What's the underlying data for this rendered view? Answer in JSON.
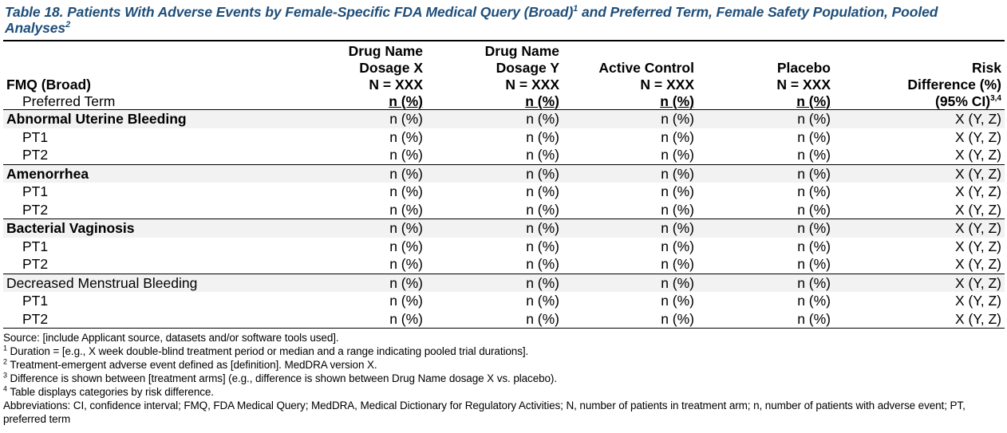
{
  "title": {
    "main": "Table 18. Patients With Adverse Events by Female-Specific FDA Medical Query (Broad)",
    "sup1": "1",
    "rest": " and Preferred Term, Female Safety Population, Pooled Analyses",
    "sup2": "2"
  },
  "header": {
    "col0_line1": "FMQ (Broad)",
    "col0_line2": "Preferred Term",
    "col1": [
      "Drug Name",
      "Dosage X",
      "N = XXX"
    ],
    "col2": [
      "Drug Name",
      "Dosage Y",
      "N = XXX"
    ],
    "col3": [
      "Active Control",
      "N = XXX"
    ],
    "col4": [
      "Placebo",
      "N = XXX"
    ],
    "col5": [
      "Risk",
      "Difference (%)",
      "(95% CI)"
    ],
    "col5_sup": "3,4",
    "unit": "n (%)"
  },
  "groups": [
    {
      "name": "Abnormal Uterine Bleeding",
      "bold": true,
      "values": [
        "n (%)",
        "n (%)",
        "n (%)",
        "n (%)",
        "X (Y, Z)"
      ],
      "terms": [
        {
          "name": "PT1",
          "values": [
            "n (%)",
            "n (%)",
            "n (%)",
            "n (%)",
            "X (Y, Z)"
          ]
        },
        {
          "name": "PT2",
          "values": [
            "n (%)",
            "n (%)",
            "n (%)",
            "n (%)",
            "X (Y, Z)"
          ]
        }
      ]
    },
    {
      "name": "Amenorrhea",
      "bold": true,
      "values": [
        "n (%)",
        "n (%)",
        "n (%)",
        "n (%)",
        "X (Y, Z)"
      ],
      "terms": [
        {
          "name": "PT1",
          "values": [
            "n (%)",
            "n (%)",
            "n (%)",
            "n (%)",
            "X (Y, Z)"
          ]
        },
        {
          "name": "PT2",
          "values": [
            "n (%)",
            "n (%)",
            "n (%)",
            "n (%)",
            "X (Y, Z)"
          ]
        }
      ]
    },
    {
      "name": "Bacterial Vaginosis",
      "bold": true,
      "values": [
        "n (%)",
        "n (%)",
        "n (%)",
        "n (%)",
        "X (Y, Z)"
      ],
      "terms": [
        {
          "name": "PT1",
          "values": [
            "n (%)",
            "n (%)",
            "n (%)",
            "n (%)",
            "X (Y, Z)"
          ]
        },
        {
          "name": "PT2",
          "values": [
            "n (%)",
            "n (%)",
            "n (%)",
            "n (%)",
            "X (Y, Z)"
          ]
        }
      ]
    },
    {
      "name": "Decreased Menstrual Bleeding",
      "bold": false,
      "values": [
        "n (%)",
        "n (%)",
        "n (%)",
        "n (%)",
        "X (Y, Z)"
      ],
      "terms": [
        {
          "name": "PT1",
          "values": [
            "n (%)",
            "n (%)",
            "n (%)",
            "n (%)",
            "X (Y, Z)"
          ]
        },
        {
          "name": "PT2",
          "values": [
            "n (%)",
            "n (%)",
            "n (%)",
            "n (%)",
            "X (Y, Z)"
          ]
        }
      ]
    }
  ],
  "footnotes": {
    "source": "Source: [include Applicant source, datasets and/or software tools used].",
    "notes": [
      {
        "sup": "1",
        "text": " Duration = [e.g., X week double-blind treatment period or median and a range indicating pooled trial durations]."
      },
      {
        "sup": "2",
        "text": " Treatment-emergent adverse event defined as [definition]. MedDRA version X."
      },
      {
        "sup": "3",
        "text": " Difference is shown between [treatment arms] (e.g., difference is shown between Drug Name dosage X vs. placebo)."
      },
      {
        "sup": "4",
        "text": " Table displays categories by risk difference."
      }
    ],
    "abbreviations": "Abbreviations: CI, confidence interval; FMQ, FDA Medical Query; MedDRA, Medical Dictionary for Regulatory Activities; N, number of patients in treatment arm; n, number of patients with adverse event; PT, preferred term"
  }
}
